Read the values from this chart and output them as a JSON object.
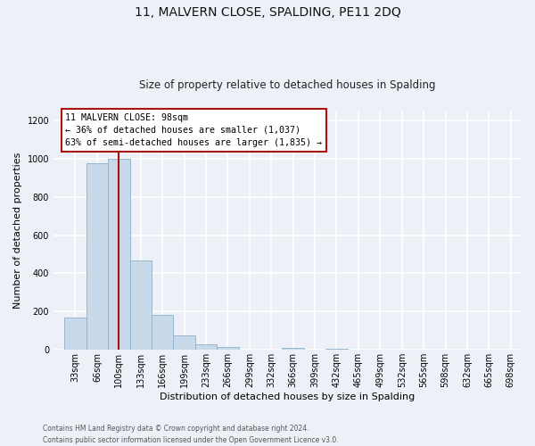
{
  "title_line1": "11, MALVERN CLOSE, SPALDING, PE11 2DQ",
  "title_line2": "Size of property relative to detached houses in Spalding",
  "xlabel": "Distribution of detached houses by size in Spalding",
  "ylabel": "Number of detached properties",
  "bin_labels": [
    "33sqm",
    "66sqm",
    "100sqm",
    "133sqm",
    "166sqm",
    "199sqm",
    "233sqm",
    "266sqm",
    "299sqm",
    "332sqm",
    "366sqm",
    "399sqm",
    "432sqm",
    "465sqm",
    "499sqm",
    "532sqm",
    "565sqm",
    "598sqm",
    "632sqm",
    "665sqm",
    "698sqm"
  ],
  "bar_values": [
    170,
    975,
    1000,
    465,
    185,
    75,
    27,
    15,
    0,
    0,
    10,
    0,
    8,
    0,
    0,
    0,
    0,
    0,
    0,
    0,
    0
  ],
  "bar_color": "#c8daea",
  "bar_edge_color": "#8ab0cc",
  "vline_color": "#aa1111",
  "ylim": [
    0,
    1250
  ],
  "yticks": [
    0,
    200,
    400,
    600,
    800,
    1000,
    1200
  ],
  "property_label": "11 MALVERN CLOSE: 98sqm",
  "annotation_line2": "← 36% of detached houses are smaller (1,037)",
  "annotation_line3": "63% of semi-detached houses are larger (1,835) →",
  "footer_line1": "Contains HM Land Registry data © Crown copyright and database right 2024.",
  "footer_line2": "Contains public sector information licensed under the Open Government Licence v3.0.",
  "background_color": "#edf1f7",
  "grid_color": "#ffffff",
  "bin_size": 33,
  "n_bins": 21
}
